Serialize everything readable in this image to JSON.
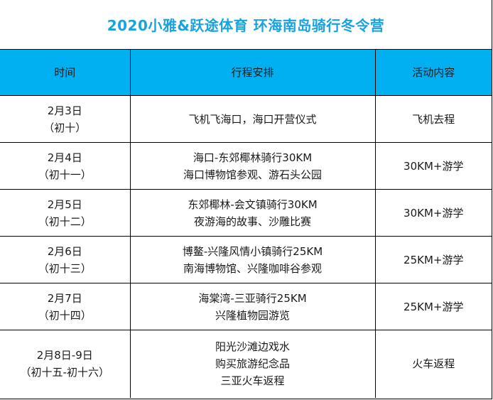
{
  "title": "2020小雅&跃途体育  环海南岛骑行冬令营",
  "header": {
    "time": "时间",
    "itinerary": "行程安排",
    "activity": "活动内容"
  },
  "rows": [
    {
      "date": "2月3日",
      "lunar": "（初十）",
      "itinerary": [
        "飞机飞海口，海口开营仪式"
      ],
      "activity": "飞机去程"
    },
    {
      "date": "2月4日",
      "lunar": "（初十一）",
      "itinerary": [
        "海口-东郊椰林骑行30KM",
        "海口博物馆参观、游石头公园"
      ],
      "activity": "30KM+游学"
    },
    {
      "date": "2月5日",
      "lunar": "（初十二）",
      "itinerary": [
        "东郊椰林-会文镇骑行30KM",
        "夜游海的故事、沙雕比赛"
      ],
      "activity": "30KM+游学"
    },
    {
      "date": "2月6日",
      "lunar": "（初十三）",
      "itinerary": [
        "博鳌-兴隆风情小镇骑行25KM",
        "南海博物馆、兴隆咖啡谷参观"
      ],
      "activity": "25KM+游学"
    },
    {
      "date": "2月7日",
      "lunar": "（初十四）",
      "itinerary": [
        "海棠湾-三亚骑行25KM",
        "兴隆植物园游览"
      ],
      "activity": "25KM+游学"
    },
    {
      "date": "2月8日-9日",
      "lunar": "（初十五-初十六）",
      "itinerary": [
        "阳光沙滩边戏水",
        "购买旅游纪念品",
        "三亚火车返程"
      ],
      "activity": "火车返程"
    }
  ]
}
